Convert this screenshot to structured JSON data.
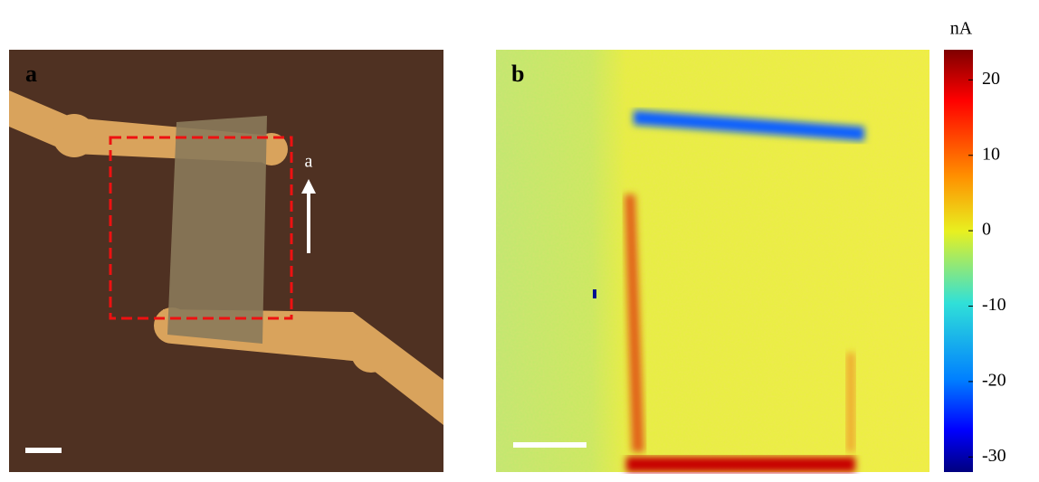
{
  "panels": [
    {
      "label": "a",
      "annotation": "a"
    },
    {
      "label": "b"
    }
  ],
  "colorbar": {
    "unit": "nA",
    "lim": [
      -32,
      24
    ],
    "ticks": [
      20,
      10,
      0,
      -10,
      -20,
      -30
    ]
  }
}
